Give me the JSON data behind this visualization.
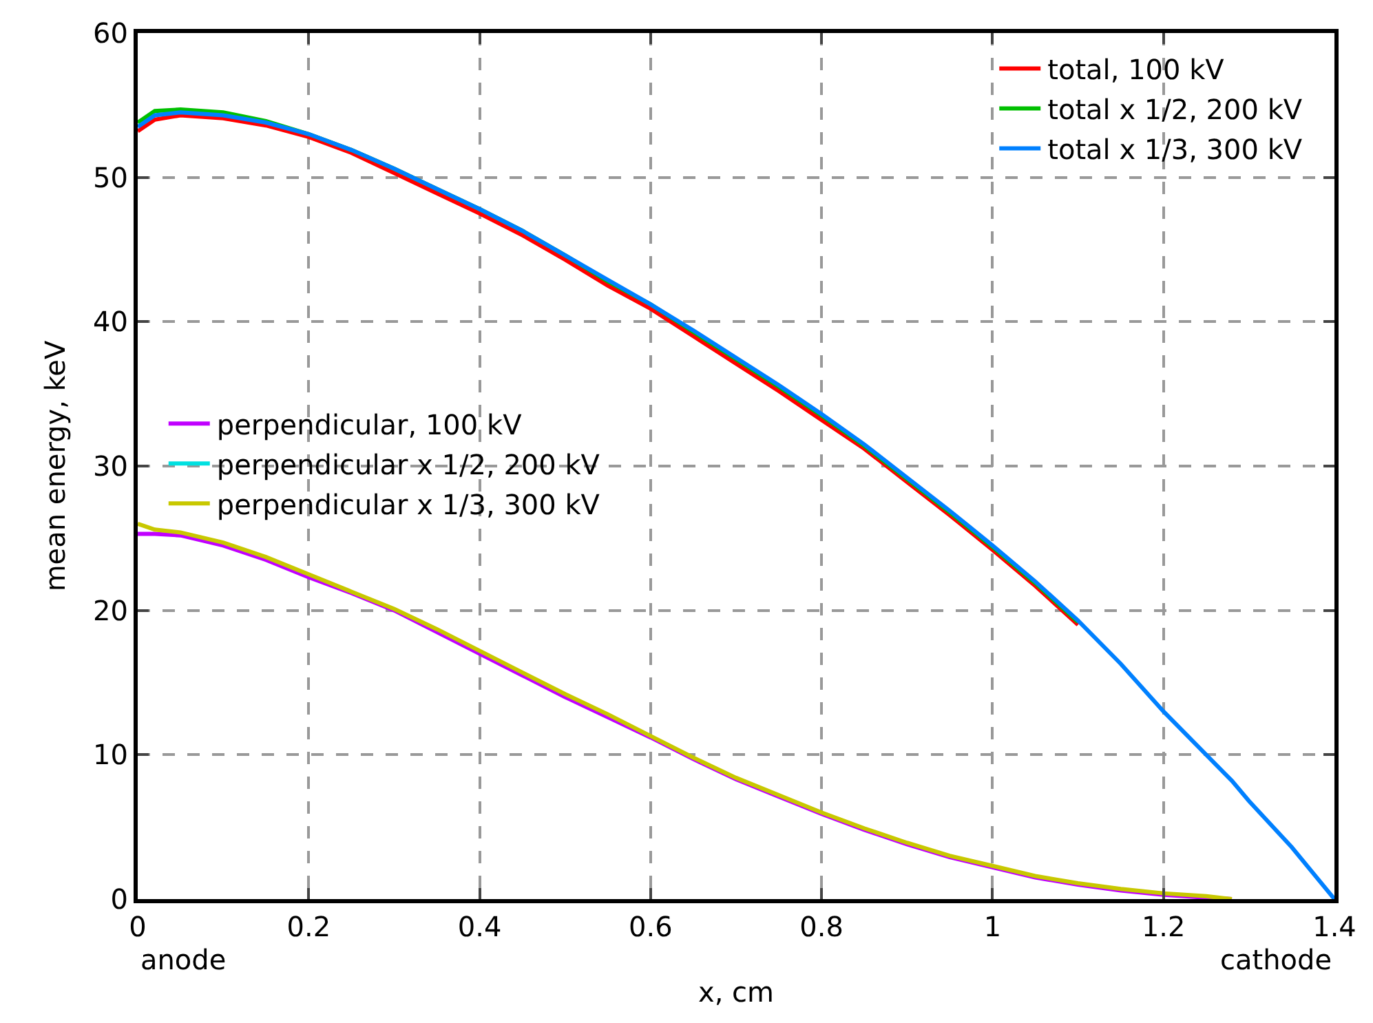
{
  "chart_data": {
    "type": "line",
    "xlabel": "x, cm",
    "ylabel": "mean energy, keV",
    "xlim": [
      0,
      1.4
    ],
    "xticks": [
      0,
      0.2,
      0.4,
      0.6,
      0.8,
      1,
      1.2,
      1.4
    ],
    "ylim": [
      0,
      60
    ],
    "yticks": [
      0,
      10,
      20,
      30,
      40,
      50,
      60
    ],
    "grid": true,
    "legend": "top right",
    "line_style": "solid",
    "marker": "none",
    "annotations": [
      "anode",
      "cathode"
    ],
    "x": [
      0,
      0.02,
      0.05,
      0.1,
      0.15,
      0.2,
      0.25,
      0.3,
      0.35,
      0.4,
      0.45,
      0.5,
      0.55,
      0.6,
      0.65,
      0.7,
      0.75,
      0.8,
      0.85,
      0.9,
      0.95,
      1.0,
      1.05,
      1.1,
      1.15,
      1.2,
      1.25,
      1.28,
      1.3,
      1.35,
      1.4
    ],
    "series": [
      {
        "name": "total, 100 kV",
        "color": "#ff0000",
        "values": [
          53.2,
          54.0,
          54.3,
          54.1,
          53.6,
          52.8,
          51.7,
          50.3,
          48.9,
          47.5,
          46.0,
          44.3,
          42.5,
          40.9,
          39.0,
          37.1,
          35.2,
          33.2,
          31.2,
          28.9,
          26.6,
          24.2,
          21.7,
          19.0,
          null,
          null,
          null,
          null,
          null,
          null,
          null
        ]
      },
      {
        "name": "total x 1/2, 200 kV",
        "color": "#00c000",
        "values": [
          53.8,
          54.6,
          54.7,
          54.5,
          53.9,
          53.0,
          51.9,
          50.6,
          49.2,
          47.8,
          46.3,
          44.6,
          42.8,
          41.2,
          39.3,
          37.4,
          35.5,
          33.5,
          31.4,
          29.1,
          26.8,
          24.4,
          21.9,
          19.2,
          null,
          null,
          null,
          null,
          null,
          null,
          null
        ]
      },
      {
        "name": "total x 1/3, 300 kV",
        "color": "#0080ff",
        "values": [
          53.5,
          54.3,
          54.5,
          54.3,
          53.8,
          53.0,
          51.9,
          50.6,
          49.2,
          47.8,
          46.3,
          44.6,
          42.9,
          41.2,
          39.4,
          37.5,
          35.6,
          33.6,
          31.5,
          29.2,
          26.9,
          24.5,
          22.0,
          19.3,
          16.3,
          13.0,
          10.0,
          8.2,
          6.8,
          3.6,
          0
        ]
      },
      {
        "name": "perpendicular, 100 kV",
        "color": "#c000ff",
        "values": [
          25.3,
          25.3,
          25.2,
          24.5,
          23.5,
          22.3,
          21.2,
          20.0,
          18.5,
          17.0,
          15.5,
          14.0,
          12.6,
          11.2,
          9.7,
          8.3,
          7.1,
          5.9,
          4.8,
          3.8,
          2.9,
          2.2,
          1.5,
          1.0,
          0.6,
          0.3,
          0.1,
          0,
          null,
          null,
          null
        ]
      },
      {
        "name": "perpendicular x 1/2, 200 kV",
        "color": "#00e0e0",
        "values": [
          null,
          null,
          null,
          null,
          null,
          null,
          null,
          null,
          null,
          null,
          null,
          null,
          null,
          null,
          null,
          null,
          null,
          null,
          null,
          null,
          null,
          null,
          null,
          null,
          null,
          null,
          null,
          null,
          null,
          null,
          null
        ]
      },
      {
        "name": "perpendicular x 1/3, 300 kV",
        "color": "#c8c800",
        "values": [
          26.0,
          25.6,
          25.4,
          24.7,
          23.7,
          22.5,
          21.3,
          20.1,
          18.7,
          17.2,
          15.7,
          14.2,
          12.8,
          11.3,
          9.8,
          8.4,
          7.2,
          6.0,
          4.9,
          3.9,
          3.0,
          2.3,
          1.6,
          1.1,
          0.7,
          0.4,
          0.2,
          0,
          null,
          null,
          null
        ]
      }
    ]
  }
}
